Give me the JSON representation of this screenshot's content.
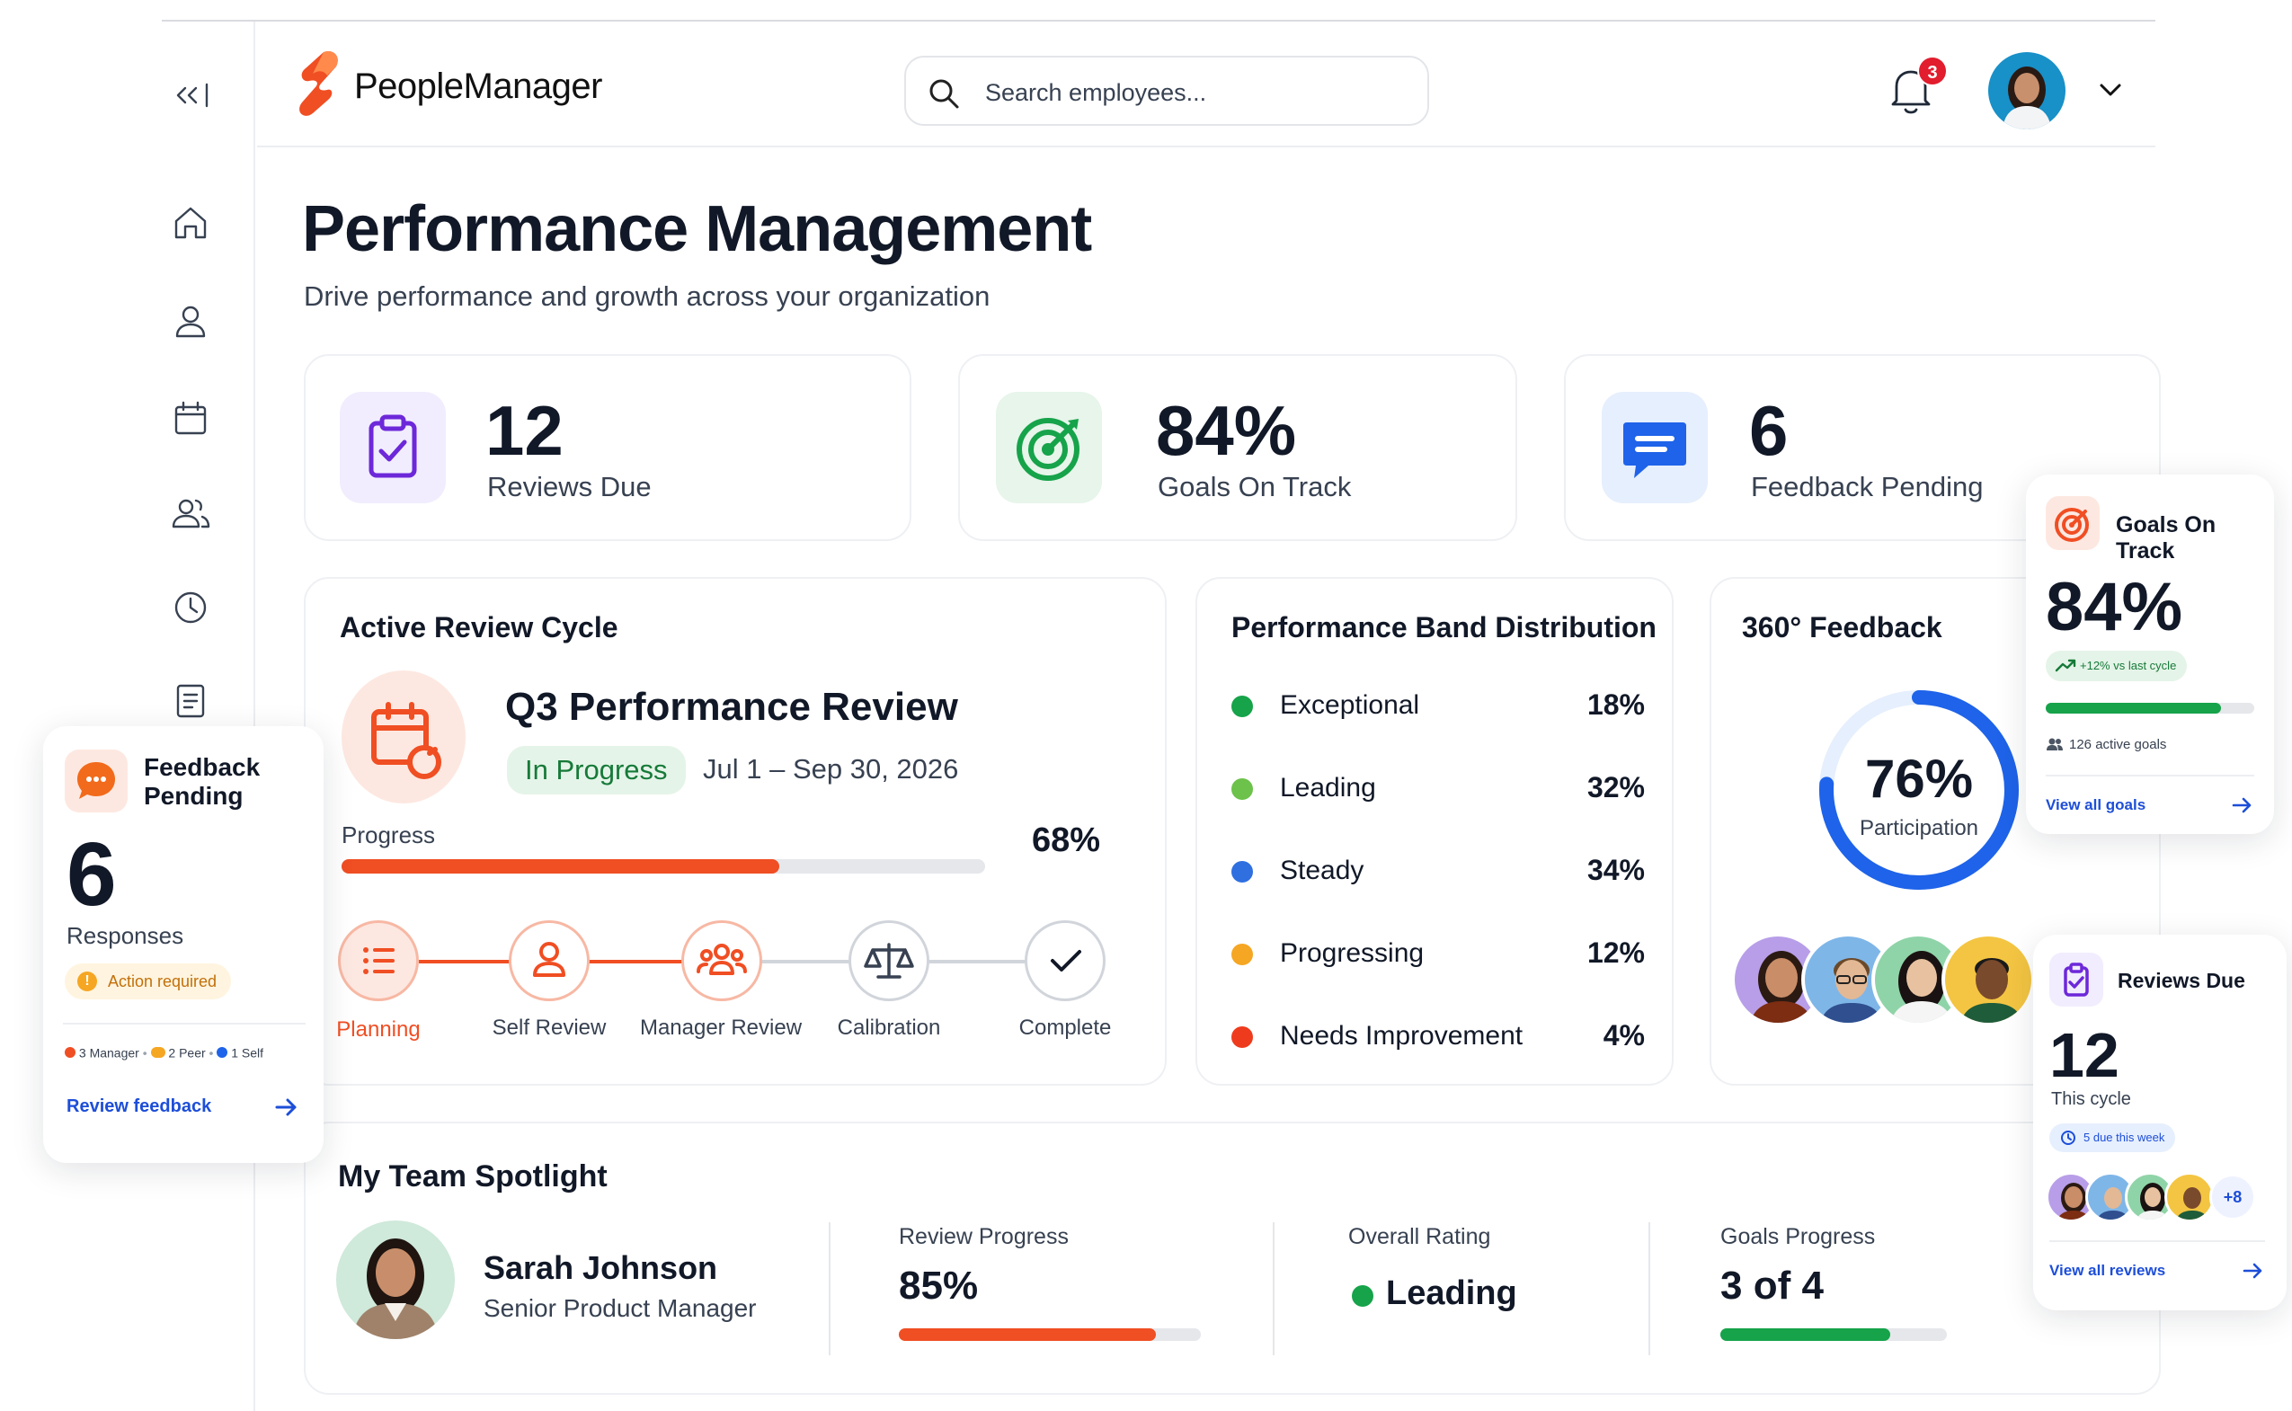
{
  "app": {
    "brand": "PeopleManager"
  },
  "search": {
    "placeholder": "Search employees..."
  },
  "notifications": {
    "count": "3"
  },
  "page": {
    "title": "Performance Management",
    "subtitle": "Drive performance and growth across your organization"
  },
  "stats": [
    {
      "value": "12",
      "label": "Reviews Due"
    },
    {
      "value": "84%",
      "label": "Goals On Track"
    },
    {
      "value": "6",
      "label": "Feedback Pending"
    }
  ],
  "review_cycle": {
    "header": "Active Review Cycle",
    "name": "Q3 Performance Review",
    "status": "In Progress",
    "dates": "Jul 1 – Sep 30, 2026",
    "progress_label": "Progress",
    "progress_text": "68%",
    "progress_value": 0.68,
    "steps": [
      "Planning",
      "Self Review",
      "Manager Review",
      "Calibration",
      "Complete"
    ]
  },
  "band": {
    "title": "Performance Band Distribution",
    "rows": [
      {
        "label": "Exceptional",
        "value": "18%",
        "color": "#16a34a"
      },
      {
        "label": "Leading",
        "value": "32%",
        "color": "#6cc24a"
      },
      {
        "label": "Steady",
        "value": "34%",
        "color": "#2f6fe0"
      },
      {
        "label": "Progressing",
        "value": "12%",
        "color": "#f5a623"
      },
      {
        "label": "Needs Improvement",
        "value": "4%",
        "color": "#ef3b1d"
      }
    ]
  },
  "feedback360": {
    "title": "360° Feedback",
    "value": "76%",
    "label": "Participation",
    "fraction": 0.76
  },
  "team": {
    "title": "My Team Spotlight",
    "name": "Sarah Johnson",
    "role": "Senior Product Manager",
    "review_label": "Review Progress",
    "review_value": "85%",
    "review_fraction": 0.85,
    "rating_label": "Overall Rating",
    "rating_value": "Leading",
    "goals_label": "Goals Progress",
    "goals_value": "3 of 4",
    "goals_fraction": 0.75
  },
  "float_feedback": {
    "title_line1": "Feedback",
    "title_line2": "Pending",
    "count": "6",
    "sub": "Responses",
    "badge": "Action required",
    "breakdown": [
      "3 Manager",
      "2 Peer",
      "1 Self"
    ],
    "link": "Review feedback"
  },
  "float_goals": {
    "title": "Goals On Track",
    "value": "84%",
    "trend": "+12% vs last cycle",
    "fraction": 0.84,
    "active": "126 active goals",
    "link": "View all goals"
  },
  "float_reviews": {
    "title": "Reviews Due",
    "value": "12",
    "sub": "This cycle",
    "badge": "5 due this week",
    "more": "+8",
    "link": "View all reviews"
  },
  "colors": {
    "accent": "#f04e23",
    "green": "#16a34a",
    "blue": "#1e63e9",
    "link": "#1d4ed8"
  }
}
